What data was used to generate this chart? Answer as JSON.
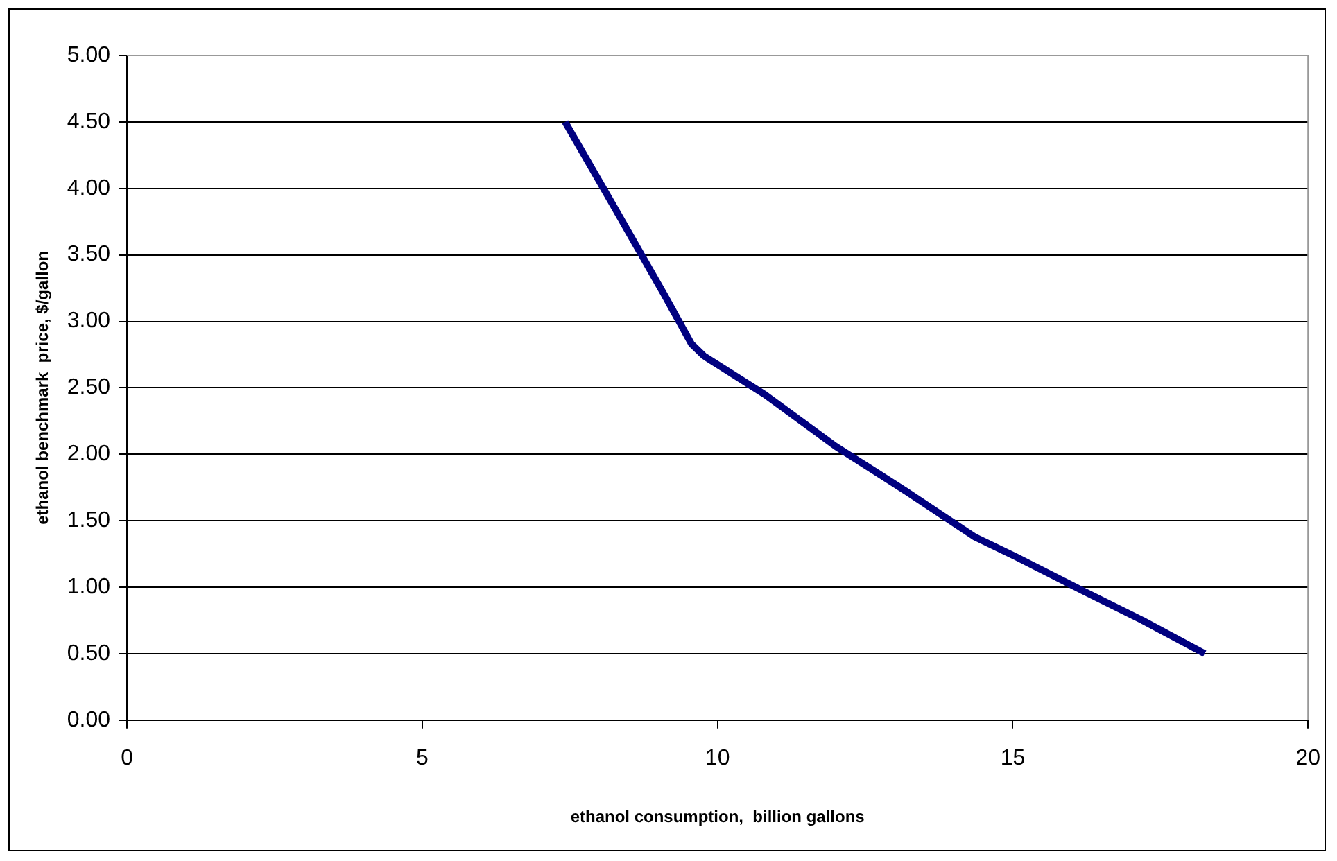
{
  "chart_data": {
    "type": "line",
    "xlabel": "ethanol consumption,  billion gallons",
    "ylabel": "ethanol benchmark  price, $/gallon",
    "series": [
      {
        "color": "#000080",
        "x": [
          7.42,
          8.25,
          9.1,
          9.56,
          9.77,
          10.8,
          12.0,
          13.2,
          14.35,
          15.05,
          16.2,
          17.2,
          18.25
        ],
        "values": [
          4.5,
          3.86,
          3.2,
          2.83,
          2.74,
          2.45,
          2.06,
          1.72,
          1.38,
          1.23,
          0.97,
          0.75,
          0.5
        ]
      }
    ],
    "xlim": [
      0,
      20
    ],
    "xticks": [
      0,
      5,
      10,
      15,
      20
    ],
    "ylim": [
      0,
      5
    ],
    "yticks": [
      {
        "value": 0,
        "label": "0.00"
      },
      {
        "value": 0.5,
        "label": "0.50"
      },
      {
        "value": 1,
        "label": "1.00"
      },
      {
        "value": 1.5,
        "label": "1.50"
      },
      {
        "value": 2,
        "label": "2.00"
      },
      {
        "value": 2.5,
        "label": "2.50"
      },
      {
        "value": 3,
        "label": "3.00"
      },
      {
        "value": 3.5,
        "label": "3.50"
      },
      {
        "value": 4,
        "label": "4.00"
      },
      {
        "value": 4.5,
        "label": "4.50"
      },
      {
        "value": 5,
        "label": "5.00"
      }
    ],
    "grid": "y",
    "legend": false,
    "marker": "none",
    "line_style": "solid"
  }
}
